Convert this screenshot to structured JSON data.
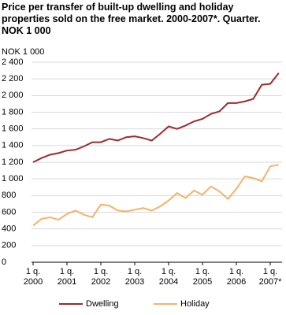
{
  "chart_data": {
    "type": "line",
    "title": "Price per transfer of built-up dwelling and holiday properties sold on the free market. 2000-2007*. Quarter. NOK 1 000",
    "y_label": "NOK 1 000",
    "categories": [
      "1 q. 2000",
      null,
      null,
      null,
      "1 q. 2001",
      null,
      null,
      null,
      "1 q. 2002",
      null,
      null,
      null,
      "1 q. 2003",
      null,
      null,
      null,
      "1 q. 2004",
      null,
      null,
      null,
      "1 q. 2005",
      null,
      null,
      null,
      "1 q. 2006",
      null,
      null,
      null,
      "1 q. 2007*",
      null
    ],
    "series": [
      {
        "name": "Dwelling",
        "color": "#9e2a2b",
        "values": [
          1200,
          1250,
          1290,
          1310,
          1340,
          1350,
          1390,
          1440,
          1440,
          1480,
          1460,
          1500,
          1510,
          1490,
          1460,
          1540,
          1630,
          1600,
          1640,
          1690,
          1720,
          1780,
          1810,
          1910,
          1910,
          1930,
          1960,
          2130,
          2140,
          2270
        ]
      },
      {
        "name": "Holiday",
        "color": "#f5b26b",
        "values": [
          440,
          520,
          540,
          510,
          580,
          620,
          570,
          540,
          690,
          680,
          620,
          610,
          630,
          650,
          620,
          670,
          740,
          830,
          770,
          860,
          810,
          910,
          850,
          760,
          880,
          1030,
          1010,
          970,
          1150,
          1170
        ]
      }
    ],
    "ylim": [
      0,
      2400
    ],
    "yticks": [
      0,
      200,
      400,
      600,
      800,
      {
        "value": 1000,
        "label": "1 000"
      },
      {
        "value": 1200,
        "label": "1 200"
      },
      {
        "value": 1400,
        "label": "1 400"
      },
      {
        "value": 1600,
        "label": "1 600"
      },
      {
        "value": 1800,
        "label": "1 800"
      },
      {
        "value": 2000,
        "label": "2 000"
      },
      {
        "value": 2200,
        "label": "2 200"
      },
      {
        "value": 2400,
        "label": "2 400"
      }
    ],
    "grid": true,
    "legend": "bottom"
  }
}
